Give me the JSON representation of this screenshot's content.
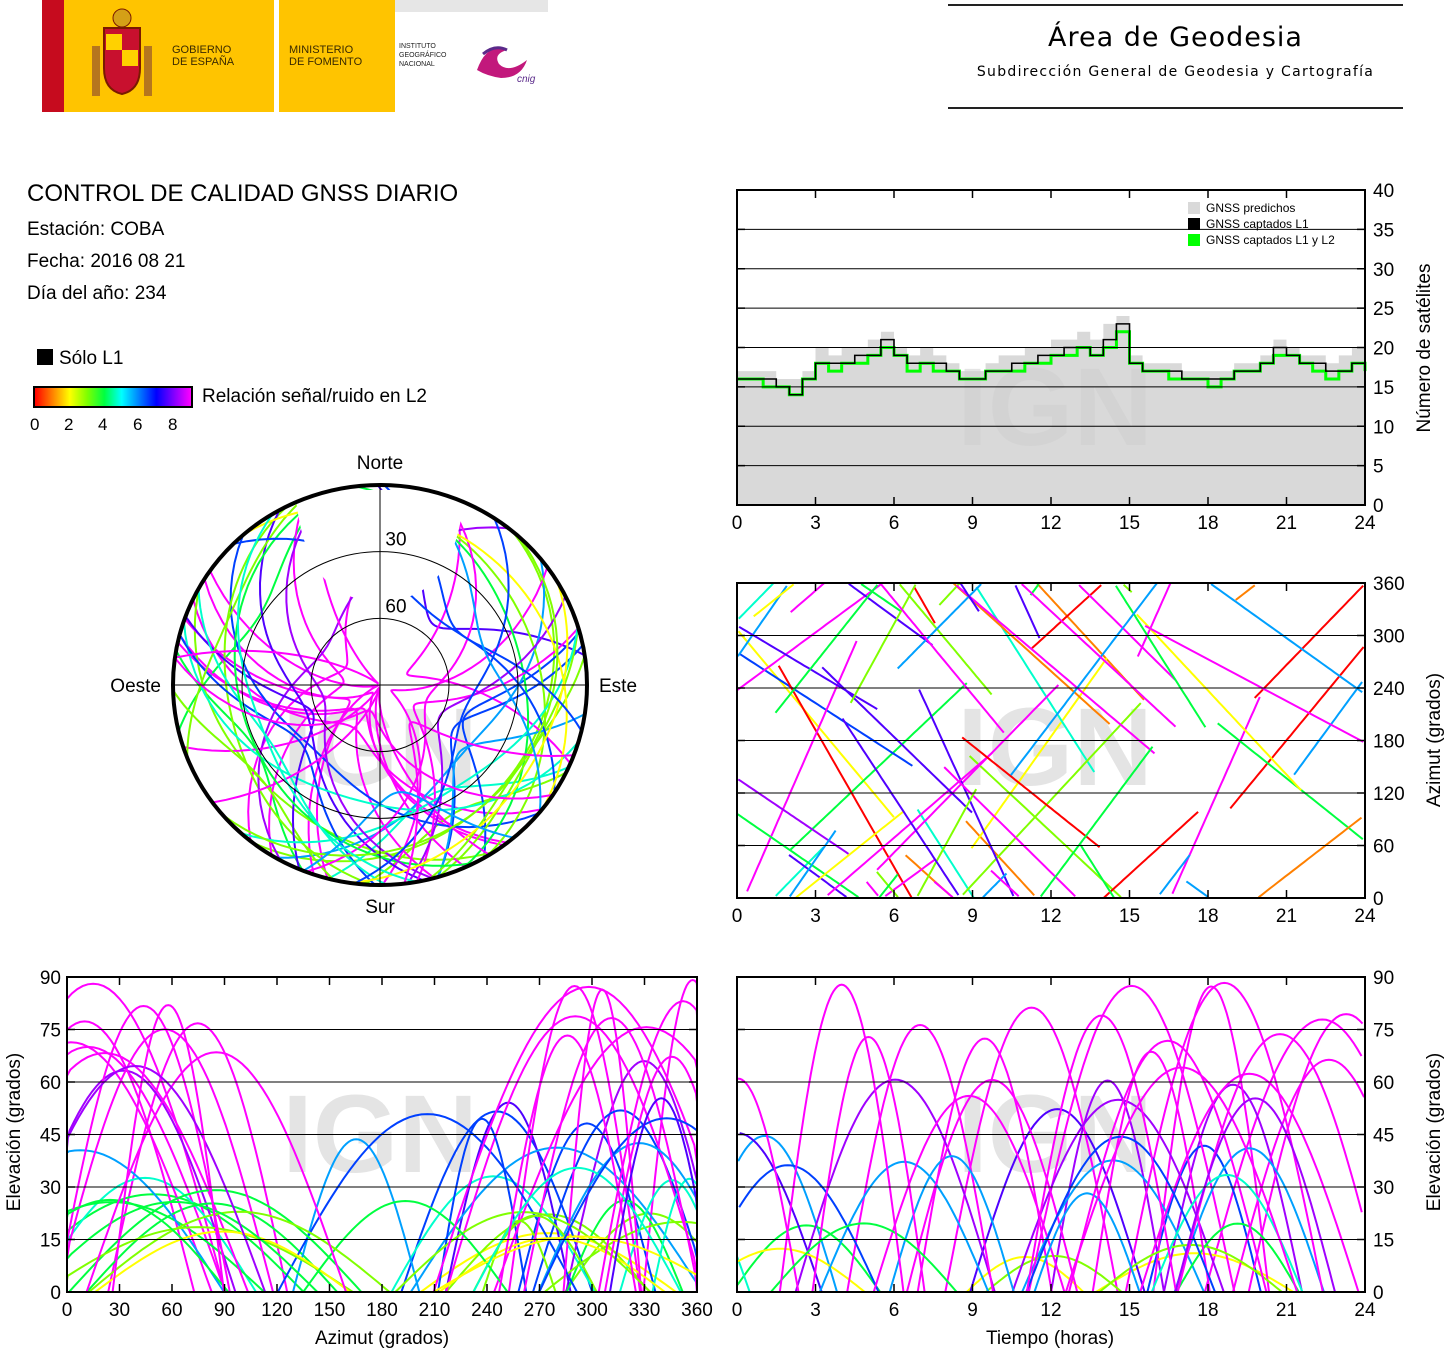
{
  "header": {
    "gobierno": "GOBIERNO\nDE ESPAÑA",
    "ministerio": "MINISTERIO\nDE FOMENTO",
    "instituto": "INSTITUTO\nGEOGRÁFICO\nNACIONAL",
    "cnig": "cnig",
    "area_title": "Área de Geodesia",
    "area_subtitle": "Subdirección General de Geodesia y Cartografía"
  },
  "info": {
    "title": "CONTROL DE CALIDAD GNSS DIARIO",
    "station": "Estación: COBA",
    "date": "Fecha: 2016 08 21",
    "doy": "Día del año: 234",
    "solo_l1": "Sólo L1",
    "snr_label": "Relación señal/ruido en L2",
    "snr_ticks": [
      "0",
      "2",
      "4",
      "6",
      "8"
    ]
  },
  "watermark": "IGN",
  "colors": {
    "l1_only": "#000000",
    "predicted": "#d9d9d9",
    "l1_l2": "#00ff00",
    "snr_scale": [
      "#ff0000",
      "#ffff00",
      "#00ff00",
      "#00ffff",
      "#0000ff",
      "#ff00ff"
    ]
  },
  "chart_data": [
    {
      "id": "skyplot",
      "type": "scatter",
      "projection": "polar",
      "cardinals": {
        "north": "Norte",
        "south": "Sur",
        "east": "Este",
        "west": "Oeste"
      },
      "elevation_rings": [
        30,
        60
      ],
      "elevation_labels": [
        "30",
        "60"
      ],
      "note_tracks": "satellite tracks colored by L2 SNR"
    },
    {
      "id": "satellites",
      "type": "area",
      "xlabel": "",
      "ylabel": "Número de satélites",
      "xlim": [
        0,
        24
      ],
      "ylim": [
        0,
        40
      ],
      "xticks": [
        "0",
        "3",
        "6",
        "9",
        "12",
        "15",
        "18",
        "21",
        "24"
      ],
      "yticks": [
        "0",
        "5",
        "10",
        "15",
        "20",
        "25",
        "30",
        "35",
        "40"
      ],
      "grid": true,
      "legend_position": "top-right",
      "legend": [
        "GNSS predichos",
        "GNSS captados L1",
        "GNSS captados L1 y L2"
      ],
      "x": [
        0,
        0.5,
        1,
        1.5,
        2,
        2.5,
        3,
        3.5,
        4,
        4.5,
        5,
        5.5,
        6,
        6.5,
        7,
        7.5,
        8,
        8.5,
        9,
        9.5,
        10,
        10.5,
        11,
        11.5,
        12,
        12.5,
        13,
        13.5,
        14,
        14.5,
        15,
        15.5,
        16,
        16.5,
        17,
        17.5,
        18,
        18.5,
        19,
        19.5,
        20,
        20.5,
        21,
        21.5,
        22,
        22.5,
        23,
        23.5,
        24
      ],
      "series": [
        {
          "name": "GNSS predichos",
          "values": [
            17,
            17,
            17,
            16,
            16,
            17,
            20,
            19,
            20,
            20,
            21,
            22,
            20,
            19,
            20,
            19,
            18,
            17,
            17,
            18,
            19,
            19,
            20,
            20,
            21,
            21,
            22,
            21,
            23,
            24,
            19,
            18,
            18,
            18,
            17,
            17,
            17,
            17,
            18,
            18,
            19,
            21,
            20,
            19,
            19,
            18,
            19,
            20,
            18
          ]
        },
        {
          "name": "GNSS captados L1",
          "values": [
            16,
            16,
            16,
            15,
            14,
            16,
            18,
            18,
            18,
            19,
            19,
            21,
            19,
            18,
            18,
            18,
            17,
            16,
            16,
            17,
            17,
            18,
            18,
            19,
            19,
            20,
            20,
            19,
            21,
            23,
            18,
            17,
            17,
            17,
            16,
            16,
            16,
            16,
            17,
            17,
            18,
            20,
            19,
            18,
            18,
            17,
            17,
            18,
            17
          ]
        },
        {
          "name": "GNSS captados L1 y L2",
          "values": [
            16,
            16,
            15,
            15,
            14,
            16,
            18,
            17,
            18,
            18,
            19,
            20,
            19,
            17,
            18,
            17,
            17,
            16,
            16,
            17,
            17,
            17,
            18,
            18,
            19,
            19,
            20,
            19,
            20,
            22,
            18,
            17,
            17,
            16,
            16,
            16,
            15,
            16,
            17,
            17,
            18,
            19,
            19,
            18,
            17,
            16,
            17,
            18,
            17
          ]
        }
      ]
    },
    {
      "id": "azimuth_time",
      "type": "scatter",
      "xlabel": "",
      "ylabel": "Azimut (grados)",
      "xlim": [
        0,
        24
      ],
      "ylim": [
        0,
        360
      ],
      "xticks": [
        "0",
        "3",
        "6",
        "9",
        "12",
        "15",
        "18",
        "21",
        "24"
      ],
      "yticks": [
        "0",
        "60",
        "120",
        "180",
        "240",
        "300",
        "360"
      ],
      "grid": true
    },
    {
      "id": "elevation_azimuth",
      "type": "scatter",
      "xlabel": "Azimut (grados)",
      "ylabel": "Elevación (grados)",
      "xlim": [
        0,
        360
      ],
      "ylim": [
        0,
        90
      ],
      "xticks": [
        "0",
        "30",
        "60",
        "90",
        "120",
        "150",
        "180",
        "210",
        "240",
        "270",
        "300",
        "330",
        "360"
      ],
      "yticks": [
        "0",
        "15",
        "30",
        "45",
        "60",
        "75",
        "90"
      ],
      "grid": true
    },
    {
      "id": "elevation_time",
      "type": "scatter",
      "xlabel": "Tiempo (horas)",
      "ylabel": "Elevación (grados)",
      "xlim": [
        0,
        24
      ],
      "ylim": [
        0,
        90
      ],
      "xticks": [
        "0",
        "3",
        "6",
        "9",
        "12",
        "15",
        "18",
        "21",
        "24"
      ],
      "yticks": [
        "0",
        "15",
        "30",
        "45",
        "60",
        "75",
        "90"
      ],
      "grid": true
    }
  ]
}
